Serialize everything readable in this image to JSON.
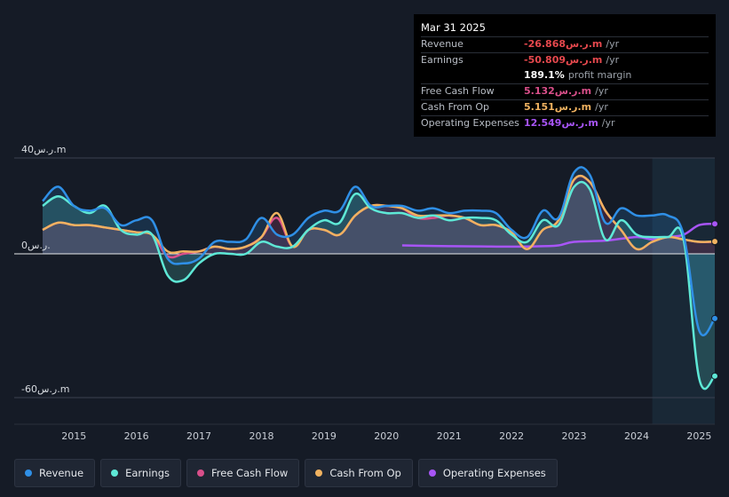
{
  "tooltip": {
    "date": "Mar 31 2025",
    "rows": [
      {
        "label": "Revenue",
        "value": "-26.868ر.س.m",
        "unit": "/yr",
        "color": "#e5484d"
      },
      {
        "label": "Earnings",
        "value": "-50.809ر.س.m",
        "unit": "/yr",
        "color": "#e5484d"
      },
      {
        "label": "",
        "value": "189.1%",
        "unit": "profit margin",
        "color": "#ffffff"
      },
      {
        "label": "Free Cash Flow",
        "value": "5.132ر.س.m",
        "unit": "/yr",
        "color": "#d94f8a"
      },
      {
        "label": "Cash From Op",
        "value": "5.151ر.س.m",
        "unit": "/yr",
        "color": "#f0b260"
      },
      {
        "label": "Operating Expenses",
        "value": "12.549ر.س.m",
        "unit": "/yr",
        "color": "#a855f7"
      }
    ]
  },
  "legend": [
    {
      "label": "Revenue",
      "color": "#2f8fe6"
    },
    {
      "label": "Earnings",
      "color": "#5ee8d6"
    },
    {
      "label": "Free Cash Flow",
      "color": "#d94f8a"
    },
    {
      "label": "Cash From Op",
      "color": "#f0b260"
    },
    {
      "label": "Operating Expenses",
      "color": "#a855f7"
    }
  ],
  "chart_data": {
    "type": "line",
    "ylim": [
      -60,
      40
    ],
    "y_tick_labels": [
      {
        "value": 40,
        "label": "40ر.س.m"
      },
      {
        "value": 0,
        "label": "0ر.س."
      },
      {
        "value": -60,
        "label": "-60ر.س.m"
      }
    ],
    "x_ticks": [
      2015,
      2016,
      2017,
      2018,
      2019,
      2020,
      2021,
      2022,
      2023,
      2024,
      2025
    ],
    "xlim": [
      2014.5,
      2025.25
    ],
    "forecast_start": 2024.25,
    "series": [
      {
        "name": "Revenue",
        "color": "#2f8fe6",
        "fill": true,
        "points": [
          [
            2014.5,
            22
          ],
          [
            2014.75,
            28
          ],
          [
            2015.0,
            20
          ],
          [
            2015.25,
            18
          ],
          [
            2015.5,
            19
          ],
          [
            2015.75,
            12
          ],
          [
            2016.0,
            14
          ],
          [
            2016.25,
            14
          ],
          [
            2016.5,
            -2
          ],
          [
            2016.75,
            -4
          ],
          [
            2017.0,
            -2
          ],
          [
            2017.25,
            5
          ],
          [
            2017.5,
            5
          ],
          [
            2017.75,
            6
          ],
          [
            2018.0,
            15
          ],
          [
            2018.25,
            8
          ],
          [
            2018.5,
            8
          ],
          [
            2018.75,
            15
          ],
          [
            2019.0,
            18
          ],
          [
            2019.25,
            18
          ],
          [
            2019.5,
            28
          ],
          [
            2019.75,
            20
          ],
          [
            2020.0,
            20
          ],
          [
            2020.25,
            20
          ],
          [
            2020.5,
            18
          ],
          [
            2020.75,
            19
          ],
          [
            2021.0,
            17
          ],
          [
            2021.25,
            18
          ],
          [
            2021.5,
            18
          ],
          [
            2021.75,
            17
          ],
          [
            2022.0,
            10
          ],
          [
            2022.25,
            7
          ],
          [
            2022.5,
            18
          ],
          [
            2022.75,
            15
          ],
          [
            2023.0,
            34
          ],
          [
            2023.25,
            33
          ],
          [
            2023.5,
            13
          ],
          [
            2023.75,
            19
          ],
          [
            2024.0,
            16
          ],
          [
            2024.25,
            16
          ],
          [
            2024.5,
            16
          ],
          [
            2024.75,
            8
          ],
          [
            2025.0,
            -32
          ],
          [
            2025.25,
            -27
          ]
        ]
      },
      {
        "name": "Earnings",
        "color": "#5ee8d6",
        "fill": true,
        "points": [
          [
            2014.5,
            20
          ],
          [
            2014.75,
            24
          ],
          [
            2015.0,
            20
          ],
          [
            2015.25,
            17
          ],
          [
            2015.5,
            20
          ],
          [
            2015.75,
            10
          ],
          [
            2016.0,
            8
          ],
          [
            2016.25,
            8
          ],
          [
            2016.5,
            -9
          ],
          [
            2016.75,
            -11
          ],
          [
            2017.0,
            -4
          ],
          [
            2017.25,
            0
          ],
          [
            2017.5,
            0
          ],
          [
            2017.75,
            0
          ],
          [
            2018.0,
            5
          ],
          [
            2018.25,
            3
          ],
          [
            2018.5,
            3
          ],
          [
            2018.75,
            10
          ],
          [
            2019.0,
            14
          ],
          [
            2019.25,
            13
          ],
          [
            2019.5,
            25
          ],
          [
            2019.75,
            19
          ],
          [
            2020.0,
            17
          ],
          [
            2020.25,
            17
          ],
          [
            2020.5,
            15
          ],
          [
            2020.75,
            16
          ],
          [
            2021.0,
            14
          ],
          [
            2021.25,
            15
          ],
          [
            2021.5,
            15
          ],
          [
            2021.75,
            14
          ],
          [
            2022.0,
            8
          ],
          [
            2022.25,
            5
          ],
          [
            2022.5,
            14
          ],
          [
            2022.75,
            12
          ],
          [
            2023.0,
            28
          ],
          [
            2023.25,
            27
          ],
          [
            2023.5,
            6
          ],
          [
            2023.75,
            14
          ],
          [
            2024.0,
            8
          ],
          [
            2024.25,
            7
          ],
          [
            2024.5,
            7
          ],
          [
            2024.75,
            6
          ],
          [
            2025.0,
            -52
          ],
          [
            2025.25,
            -51
          ]
        ]
      },
      {
        "name": "Free Cash Flow",
        "color": "#d94f8a",
        "fill": true,
        "points": [
          [
            2014.5,
            10
          ],
          [
            2014.75,
            13
          ],
          [
            2015.0,
            12
          ],
          [
            2015.25,
            12
          ],
          [
            2015.5,
            11
          ],
          [
            2015.75,
            10
          ],
          [
            2016.0,
            9
          ],
          [
            2016.25,
            8
          ],
          [
            2016.5,
            -1
          ],
          [
            2016.75,
            0
          ],
          [
            2017.0,
            1
          ],
          [
            2017.25,
            3
          ],
          [
            2017.5,
            2
          ],
          [
            2017.75,
            3
          ],
          [
            2018.0,
            7
          ],
          [
            2018.25,
            15
          ],
          [
            2018.5,
            3
          ],
          [
            2018.75,
            10
          ],
          [
            2019.0,
            10
          ],
          [
            2019.25,
            8
          ],
          [
            2019.5,
            16
          ],
          [
            2019.75,
            20
          ],
          [
            2020.0,
            20
          ],
          [
            2020.25,
            19
          ],
          [
            2020.5,
            15
          ],
          [
            2020.75,
            15
          ],
          [
            2021.0,
            16
          ],
          [
            2021.25,
            15
          ],
          [
            2021.5,
            12
          ],
          [
            2021.75,
            12
          ],
          [
            2022.0,
            9
          ],
          [
            2022.25,
            2
          ],
          [
            2022.5,
            10
          ],
          [
            2022.75,
            14
          ],
          [
            2023.0,
            31
          ],
          [
            2023.25,
            30
          ],
          [
            2023.5,
            18
          ],
          [
            2023.75,
            10
          ],
          [
            2024.0,
            2
          ],
          [
            2024.25,
            5
          ],
          [
            2024.5,
            7
          ],
          [
            2024.75,
            6
          ],
          [
            2025.0,
            5
          ],
          [
            2025.25,
            5
          ]
        ]
      },
      {
        "name": "Cash From Op",
        "color": "#f0b260",
        "fill": false,
        "points": [
          [
            2014.5,
            10
          ],
          [
            2014.75,
            13
          ],
          [
            2015.0,
            12
          ],
          [
            2015.25,
            12
          ],
          [
            2015.5,
            11
          ],
          [
            2015.75,
            10
          ],
          [
            2016.0,
            9
          ],
          [
            2016.25,
            8
          ],
          [
            2016.5,
            1
          ],
          [
            2016.75,
            1
          ],
          [
            2017.0,
            1
          ],
          [
            2017.25,
            3
          ],
          [
            2017.5,
            2
          ],
          [
            2017.75,
            3
          ],
          [
            2018.0,
            7
          ],
          [
            2018.25,
            17
          ],
          [
            2018.5,
            3
          ],
          [
            2018.75,
            10
          ],
          [
            2019.0,
            10
          ],
          [
            2019.25,
            8
          ],
          [
            2019.5,
            16
          ],
          [
            2019.75,
            20
          ],
          [
            2020.0,
            20
          ],
          [
            2020.25,
            19
          ],
          [
            2020.5,
            16
          ],
          [
            2020.75,
            16
          ],
          [
            2021.0,
            16
          ],
          [
            2021.25,
            15
          ],
          [
            2021.5,
            12
          ],
          [
            2021.75,
            12
          ],
          [
            2022.0,
            9
          ],
          [
            2022.25,
            2
          ],
          [
            2022.5,
            10
          ],
          [
            2022.75,
            14
          ],
          [
            2023.0,
            31
          ],
          [
            2023.25,
            30
          ],
          [
            2023.5,
            18
          ],
          [
            2023.75,
            10
          ],
          [
            2024.0,
            2
          ],
          [
            2024.25,
            5
          ],
          [
            2024.5,
            7
          ],
          [
            2024.75,
            6
          ],
          [
            2025.0,
            5
          ],
          [
            2025.25,
            5.15
          ]
        ]
      },
      {
        "name": "Operating Expenses",
        "color": "#a855f7",
        "fill": false,
        "points": [
          [
            2020.25,
            3.5
          ],
          [
            2020.75,
            3.3
          ],
          [
            2021.0,
            3.2
          ],
          [
            2021.5,
            3.1
          ],
          [
            2022.0,
            3.0
          ],
          [
            2022.5,
            3.2
          ],
          [
            2022.75,
            3.5
          ],
          [
            2023.0,
            5
          ],
          [
            2023.5,
            5.5
          ],
          [
            2024.0,
            7
          ],
          [
            2024.25,
            6
          ],
          [
            2024.5,
            7
          ],
          [
            2024.75,
            8
          ],
          [
            2025.0,
            12
          ],
          [
            2025.25,
            12.5
          ]
        ]
      }
    ]
  }
}
